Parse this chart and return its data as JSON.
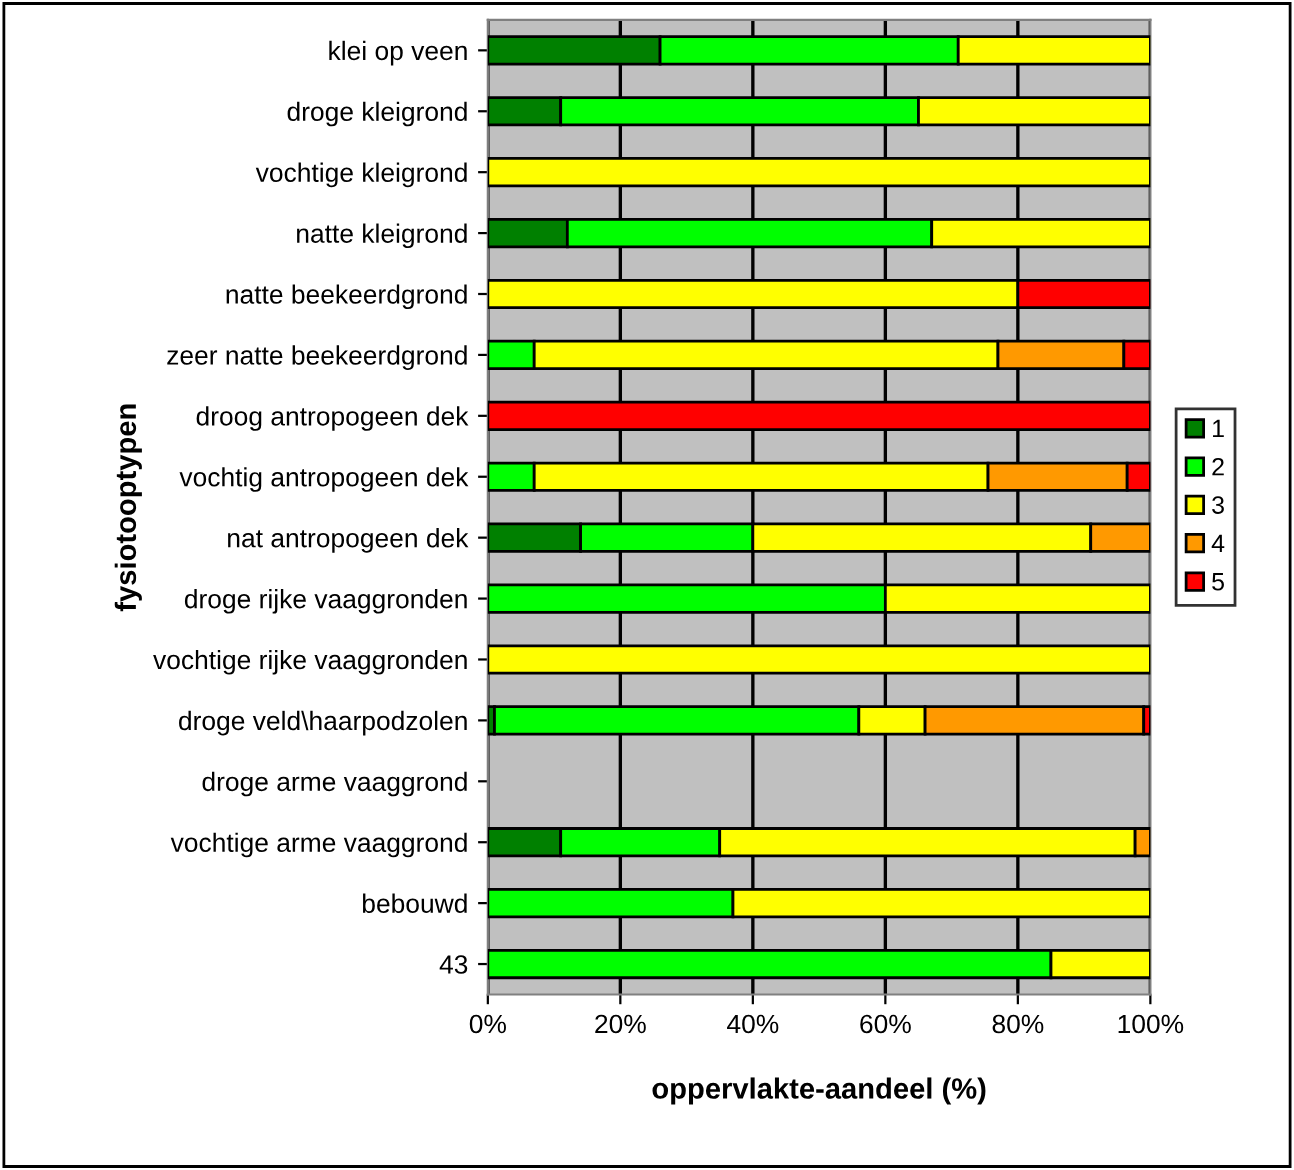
{
  "chart_data": {
    "type": "bar",
    "orientation": "horizontal",
    "stacked": true,
    "ylabel": "fysiotooptypen",
    "xlabel": "oppervlakte-aandeel (%)",
    "categories": [
      "klei op veen",
      "droge kleigrond",
      "vochtige kleigrond",
      "natte kleigrond",
      "natte beekeerdgrond",
      "zeer natte beekeerdgrond",
      "droog antropogeen dek",
      "vochtig antropogeen dek",
      "nat antropogeen dek",
      "droge rijke vaaggronden",
      "vochtige rijke vaaggronden",
      "droge veld\\haarpodzolen",
      "droge arme vaaggrond",
      "vochtige arme vaaggrond",
      "bebouwd",
      "43"
    ],
    "series": [
      {
        "name": "1",
        "color": "#008000",
        "values": [
          26,
          11,
          null,
          12,
          null,
          null,
          null,
          null,
          14,
          null,
          null,
          1,
          null,
          11,
          null,
          null
        ]
      },
      {
        "name": "2",
        "color": "#00ff00",
        "values": [
          45,
          54,
          null,
          55,
          null,
          7,
          null,
          7,
          26,
          60,
          null,
          55,
          null,
          24,
          37,
          85
        ]
      },
      {
        "name": "3",
        "color": "#ffff00",
        "values": [
          29,
          35,
          100,
          33,
          80,
          70,
          null,
          68.5,
          51,
          40,
          100,
          10,
          null,
          62.7,
          63,
          15
        ]
      },
      {
        "name": "4",
        "color": "#ff9900",
        "values": [
          null,
          null,
          null,
          null,
          null,
          19,
          null,
          21,
          9,
          null,
          null,
          33,
          null,
          2.3,
          null,
          null
        ]
      },
      {
        "name": "5",
        "color": "#ff0000",
        "values": [
          null,
          null,
          null,
          null,
          20,
          4,
          100,
          3.5,
          null,
          null,
          null,
          1,
          null,
          null,
          null,
          null
        ]
      }
    ],
    "xlim": [
      0,
      100
    ],
    "xticks": [
      {
        "value": 0,
        "label": "0%"
      },
      {
        "value": 20,
        "label": "20%"
      },
      {
        "value": 40,
        "label": "40%"
      },
      {
        "value": 60,
        "label": "60%"
      },
      {
        "value": 80,
        "label": "80%"
      },
      {
        "value": 100,
        "label": "100%"
      }
    ],
    "grid": "x",
    "legend": "right"
  }
}
